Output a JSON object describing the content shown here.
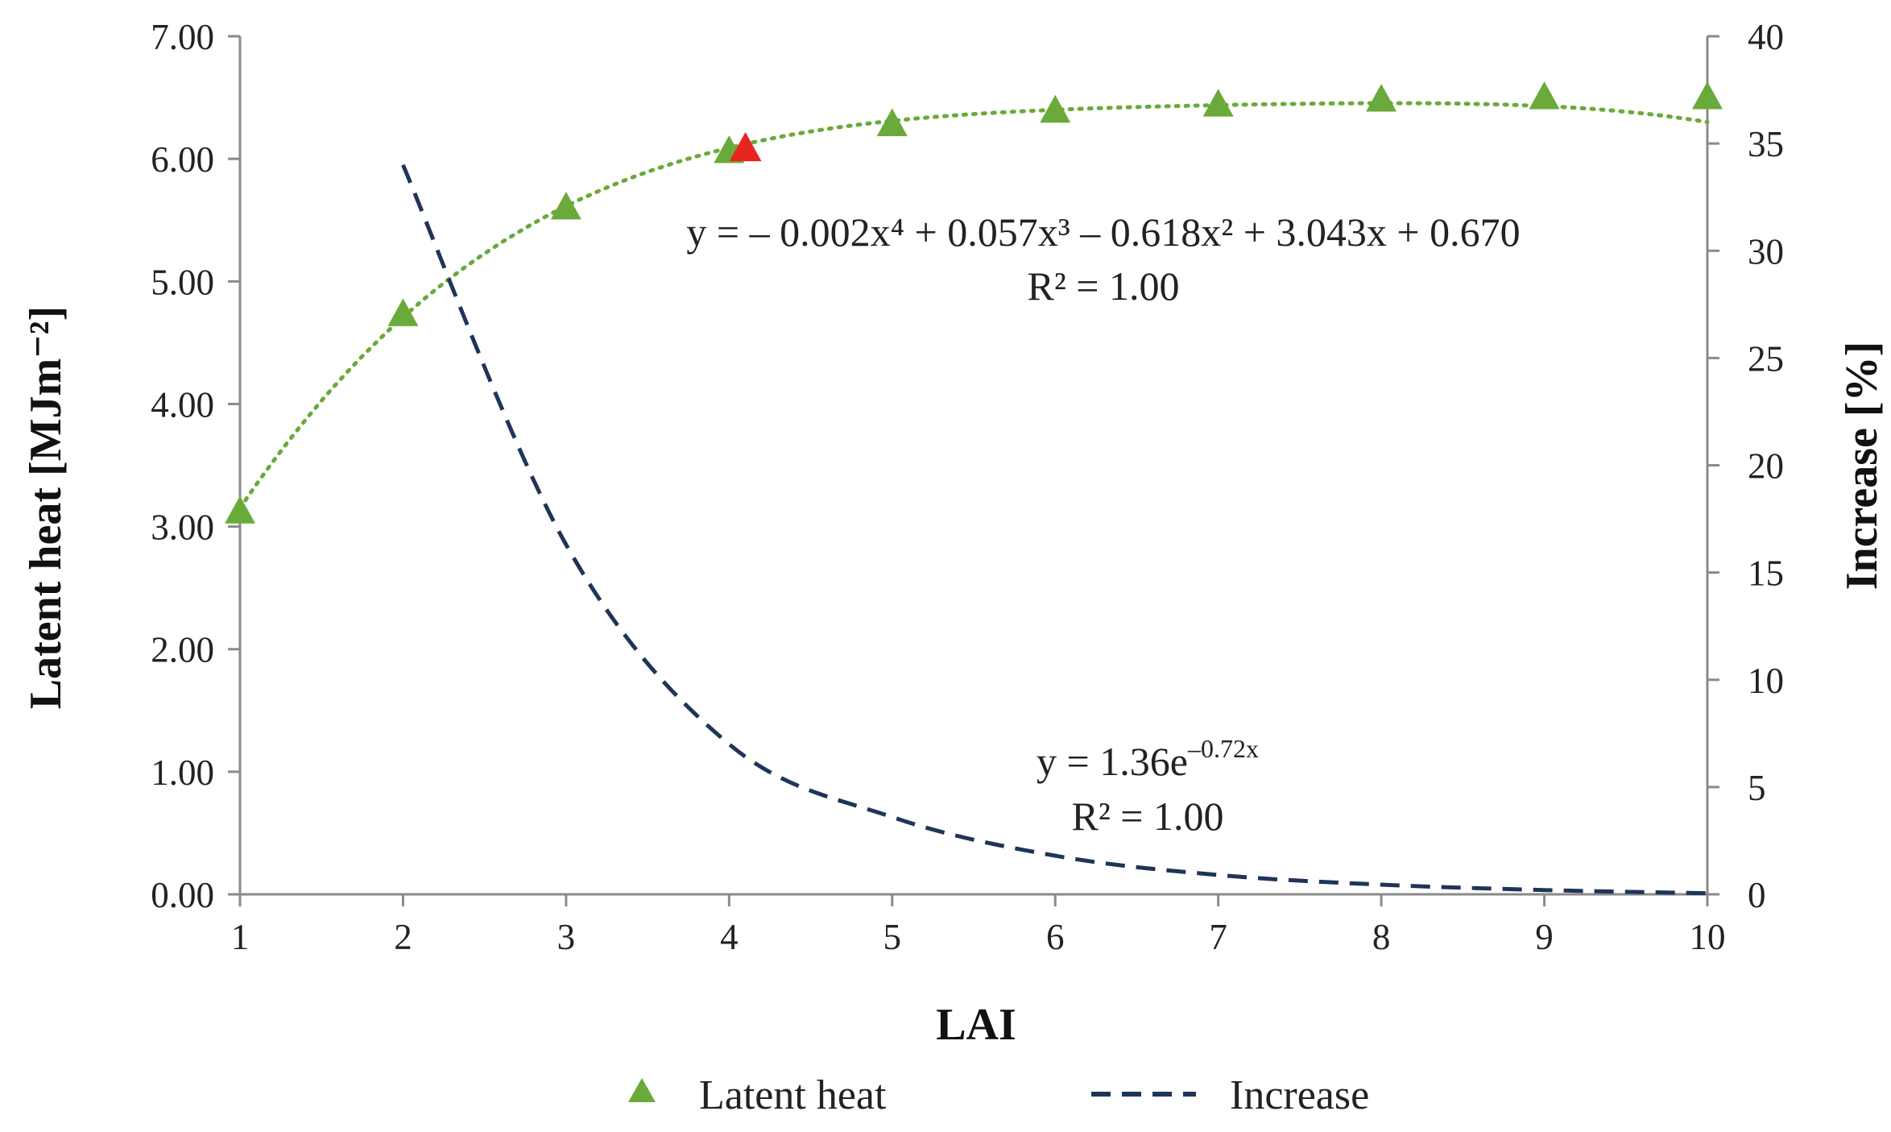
{
  "chart_data": {
    "type": "scatter+line",
    "xlabel": "LAI",
    "ylabel": "Latent heat   [MJm⁻²]",
    "y2label": "Increase   [%]",
    "xlim": [
      1,
      10
    ],
    "ylim": [
      0,
      7
    ],
    "y2lim": [
      0,
      40
    ],
    "x_ticks": [
      "1",
      "2",
      "3",
      "4",
      "5",
      "6",
      "7",
      "8",
      "9",
      "10"
    ],
    "y_ticks": [
      "0.00",
      "1.00",
      "2.00",
      "3.00",
      "4.00",
      "5.00",
      "6.00",
      "7.00"
    ],
    "y2_ticks": [
      "0",
      "5",
      "10",
      "15",
      "20",
      "25",
      "30",
      "35",
      "40"
    ],
    "series": [
      {
        "name": "Latent heat",
        "kind": "scatter",
        "axis": "left",
        "marker": "triangle",
        "color": "#6aaa3a",
        "x": [
          1,
          2,
          3,
          4,
          5,
          6,
          7,
          8,
          9,
          10
        ],
        "values": [
          3.12,
          4.73,
          5.6,
          6.06,
          6.28,
          6.39,
          6.44,
          6.48,
          6.5,
          6.5
        ]
      },
      {
        "name": "Latent heat trend",
        "kind": "polynomial",
        "axis": "left",
        "style": "dotted",
        "color": "#6aaa3a",
        "coefficients": [
          -0.002,
          0.057,
          -0.618,
          3.043,
          0.67
        ],
        "x_range": [
          1,
          10
        ]
      },
      {
        "name": "Increase",
        "kind": "exponential",
        "axis": "right",
        "style": "dashed",
        "color": "#1f3558",
        "a": 1.36,
        "b": -0.72,
        "x": [
          2,
          3,
          4,
          5,
          6,
          7,
          8,
          9,
          10
        ],
        "values": [
          34.0,
          16.3,
          7.0,
          3.6,
          1.8,
          0.9,
          0.45,
          0.2,
          0.05
        ]
      }
    ],
    "highlight_point": {
      "x": 4.1,
      "y": 6.08,
      "color": "#e8251f"
    },
    "annotations": {
      "poly_equation": "y = – 0.002x⁴ + 0.057x³ – 0.618x² + 3.043x + 0.670",
      "poly_r2": "R² = 1.00",
      "exp_equation_base": "y = 1.36e",
      "exp_equation_exponent": "–0.72x",
      "exp_r2": "R² = 1.00"
    },
    "legend": {
      "position": "bottom-center",
      "entries": [
        {
          "label": "Latent heat",
          "marker": "triangle",
          "color": "#6aaa3a"
        },
        {
          "label": "Increase",
          "marker": "dashed-line",
          "color": "#1f3558"
        }
      ]
    }
  }
}
